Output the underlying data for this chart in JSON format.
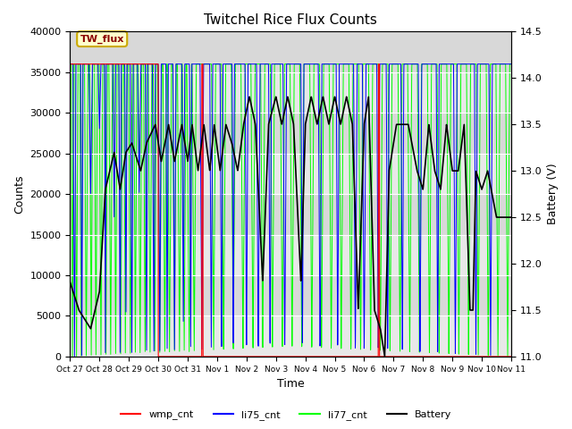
{
  "title": "Twitchel Rice Flux Counts",
  "xlabel": "Time",
  "ylabel_left": "Counts",
  "ylabel_right": "Battery (V)",
  "ylim_left": [
    0,
    40000
  ],
  "ylim_right": [
    11.0,
    14.5
  ],
  "yticks_left": [
    0,
    5000,
    10000,
    15000,
    20000,
    25000,
    30000,
    35000,
    40000
  ],
  "yticks_right": [
    11.0,
    11.5,
    12.0,
    12.5,
    13.0,
    13.5,
    14.0,
    14.5
  ],
  "xtick_labels": [
    "Oct 27",
    "Oct 28",
    "Oct 29",
    "Oct 30",
    "Oct 31",
    "Nov 1",
    "Nov 2",
    "Nov 3",
    "Nov 4",
    "Nov 5",
    "Nov 6",
    "Nov 7",
    "Nov 8",
    "Nov 9",
    "Nov 10",
    "Nov 11"
  ],
  "legend_entries": [
    "wmp_cnt",
    "li75_cnt",
    "li77_cnt",
    "Battery"
  ],
  "annotation_text": "TW_flux",
  "annotation_box_color": "#ffffcc",
  "annotation_text_color": "#8b0000",
  "annotation_border_color": "#ccaa00",
  "fig_bg_color": "#ffffff",
  "plot_bg_color": "#d8d8d8",
  "band_light": "#e8e8e8",
  "band_dark": "#d0d0d0",
  "battery_scale_low": 11.0,
  "battery_scale_high": 14.5,
  "n_days": 15,
  "battery_profile_t": [
    0,
    0.3,
    0.7,
    1.0,
    1.2,
    1.5,
    1.7,
    1.9,
    2.1,
    2.4,
    2.6,
    2.9,
    3.1,
    3.35,
    3.55,
    3.8,
    4.0,
    4.15,
    4.35,
    4.55,
    4.75,
    4.9,
    5.1,
    5.3,
    5.5,
    5.7,
    5.9,
    6.1,
    6.3,
    6.55,
    6.75,
    7.0,
    7.2,
    7.4,
    7.6,
    7.85,
    8.0,
    8.2,
    8.4,
    8.6,
    8.8,
    9.0,
    9.2,
    9.4,
    9.6,
    9.8,
    10.0,
    10.15,
    10.35,
    10.55,
    10.7,
    10.85,
    11.1,
    11.5,
    11.8,
    12.0,
    12.2,
    12.4,
    12.6,
    12.8,
    13.0,
    13.2,
    13.4,
    13.6,
    13.7,
    13.8,
    14.0,
    14.2,
    14.5,
    15.0
  ],
  "battery_profile_v": [
    11.8,
    11.5,
    11.3,
    11.7,
    12.8,
    13.2,
    12.8,
    13.2,
    13.3,
    13.0,
    13.3,
    13.5,
    13.1,
    13.5,
    13.1,
    13.5,
    13.1,
    13.5,
    13.0,
    13.5,
    13.0,
    13.5,
    13.0,
    13.5,
    13.3,
    13.0,
    13.5,
    13.8,
    13.5,
    11.8,
    13.5,
    13.8,
    13.5,
    13.8,
    13.5,
    11.8,
    13.5,
    13.8,
    13.5,
    13.8,
    13.5,
    13.8,
    13.5,
    13.8,
    13.5,
    11.5,
    13.5,
    13.8,
    11.5,
    11.3,
    11.0,
    13.0,
    13.5,
    13.5,
    13.0,
    12.8,
    13.5,
    13.0,
    12.8,
    13.5,
    13.0,
    13.0,
    13.5,
    11.5,
    11.5,
    13.0,
    12.8,
    13.0,
    12.5,
    12.5
  ]
}
